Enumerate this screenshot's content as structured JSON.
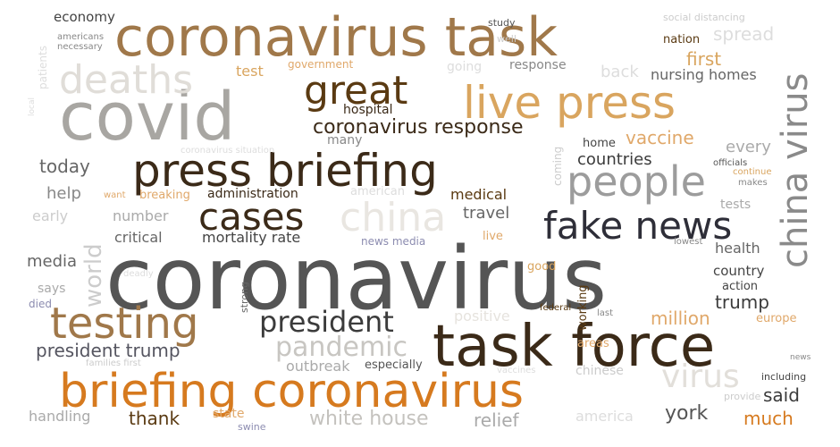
{
  "palette": {
    "background": "#ffffff",
    "dark_gray": "#555555",
    "dark_brown": "#3b2a18",
    "brown": "#5a3a12",
    "tan": "#a0784a",
    "orange": "#d67a1f",
    "light_tan": "#d9a55f",
    "gray": "#9c9c9c",
    "light_gray": "#cccccc",
    "pale": "#e6e3de",
    "slate": "#2e2e38",
    "lavender": "#8c8cb0"
  },
  "words": [
    {
      "text": "coronavirus",
      "color": "#555555"
    },
    {
      "text": "coronavirus task",
      "color": "#a0784a"
    },
    {
      "text": "covid",
      "color": "#a8a6a2"
    },
    {
      "text": "press briefing",
      "color": "#3b2a18"
    },
    {
      "text": "task force",
      "color": "#3b2a18"
    },
    {
      "text": "briefing coronavirus",
      "color": "#d67a1f"
    },
    {
      "text": "live press",
      "color": "#d9a55f"
    },
    {
      "text": "deaths",
      "color": "#e0ddd8"
    },
    {
      "text": "great",
      "color": "#5a3a12"
    },
    {
      "text": "people",
      "color": "#9c9c9c"
    },
    {
      "text": "china virus",
      "color": "#8a8a8a"
    },
    {
      "text": "testing",
      "color": "#a0784a"
    },
    {
      "text": "fake news",
      "color": "#2e2e38"
    },
    {
      "text": "cases",
      "color": "#3b2a18"
    },
    {
      "text": "china",
      "color": "#e9e6e1"
    },
    {
      "text": "president",
      "color": "#3b3b3b"
    },
    {
      "text": "pandemic",
      "color": "#c8c6c2"
    },
    {
      "text": "coronavirus response",
      "color": "#3b2a18"
    },
    {
      "text": "virus",
      "color": "#e2dfda"
    },
    {
      "text": "world",
      "color": "#cccccc"
    },
    {
      "text": "president trump",
      "color": "#555560"
    },
    {
      "text": "white house",
      "color": "#c4c2be"
    },
    {
      "text": "vaccine",
      "color": "#e0a86a"
    },
    {
      "text": "first",
      "color": "#d9a55f"
    },
    {
      "text": "nursing homes",
      "color": "#666666"
    },
    {
      "text": "today",
      "color": "#666666"
    },
    {
      "text": "countries",
      "color": "#3b3b3b"
    },
    {
      "text": "million",
      "color": "#e0a86a"
    },
    {
      "text": "trump",
      "color": "#3b3b3b"
    },
    {
      "text": "york",
      "color": "#555555"
    },
    {
      "text": "much",
      "color": "#d67a1f"
    },
    {
      "text": "said",
      "color": "#3b3b3b"
    },
    {
      "text": "relief",
      "color": "#aaaaaa"
    },
    {
      "text": "thank",
      "color": "#5a3a12"
    },
    {
      "text": "handling",
      "color": "#aaaaaa"
    },
    {
      "text": "media",
      "color": "#666666"
    },
    {
      "text": "travel",
      "color": "#666666"
    },
    {
      "text": "medical",
      "color": "#5a3a12"
    },
    {
      "text": "hospital",
      "color": "#3b2a18"
    },
    {
      "text": "many",
      "color": "#888888"
    },
    {
      "text": "response",
      "color": "#888888"
    },
    {
      "text": "government",
      "color": "#e0a86a"
    },
    {
      "text": "test",
      "color": "#d9a55f"
    },
    {
      "text": "economy",
      "color": "#444444"
    },
    {
      "text": "americans necessary",
      "color": "#888888"
    },
    {
      "text": "patients",
      "color": "#dddddd"
    },
    {
      "text": "going",
      "color": "#dddddd"
    },
    {
      "text": "back",
      "color": "#dddddd"
    },
    {
      "text": "spread",
      "color": "#dddddd"
    },
    {
      "text": "nation",
      "color": "#5a3a12"
    },
    {
      "text": "social distancing",
      "color": "#cccccc"
    },
    {
      "text": "study",
      "color": "#555555"
    },
    {
      "text": "well",
      "color": "#cccccc"
    },
    {
      "text": "every",
      "color": "#aaaaaa"
    },
    {
      "text": "home",
      "color": "#444444"
    },
    {
      "text": "coming",
      "color": "#cccccc"
    },
    {
      "text": "officials",
      "color": "#555555"
    },
    {
      "text": "continue",
      "color": "#d9a55f"
    },
    {
      "text": "makes",
      "color": "#888888"
    },
    {
      "text": "tests",
      "color": "#aaaaaa"
    },
    {
      "text": "health",
      "color": "#666666"
    },
    {
      "text": "lowest",
      "color": "#888888"
    },
    {
      "text": "country",
      "color": "#444444"
    },
    {
      "text": "action",
      "color": "#444444"
    },
    {
      "text": "europe",
      "color": "#e0a86a"
    },
    {
      "text": "last",
      "color": "#888888"
    },
    {
      "text": "working",
      "color": "#5a3a12"
    },
    {
      "text": "federal",
      "color": "#5a3a12"
    },
    {
      "text": "positive",
      "color": "#e6e3de"
    },
    {
      "text": "areas",
      "color": "#e0a86a"
    },
    {
      "text": "especially",
      "color": "#555555"
    },
    {
      "text": "outbreak",
      "color": "#aaaaaa"
    },
    {
      "text": "vaccines",
      "color": "#dddddd"
    },
    {
      "text": "chinese",
      "color": "#cccccc"
    },
    {
      "text": "including",
      "color": "#444444"
    },
    {
      "text": "news",
      "color": "#888888"
    },
    {
      "text": "provide",
      "color": "#cccccc"
    },
    {
      "text": "america",
      "color": "#dddddd"
    },
    {
      "text": "state",
      "color": "#e0a86a"
    },
    {
      "text": "swine",
      "color": "#8c8cb0"
    },
    {
      "text": "families first",
      "color": "#cccccc"
    },
    {
      "text": "died",
      "color": "#8c8cb0"
    },
    {
      "text": "says",
      "color": "#aaaaaa"
    },
    {
      "text": "deadly",
      "color": "#dddddd"
    },
    {
      "text": "strong",
      "color": "#666666"
    },
    {
      "text": "good",
      "color": "#d9a55f"
    },
    {
      "text": "live",
      "color": "#e0a86a"
    },
    {
      "text": "news media",
      "color": "#8c8cb0"
    },
    {
      "text": "critical",
      "color": "#666666"
    },
    {
      "text": "mortality rate",
      "color": "#444444"
    },
    {
      "text": "number",
      "color": "#aaaaaa"
    },
    {
      "text": "early",
      "color": "#cccccc"
    },
    {
      "text": "help",
      "color": "#888888"
    },
    {
      "text": "administration",
      "color": "#3b2a18"
    },
    {
      "text": "breaking",
      "color": "#e0a86a"
    },
    {
      "text": "american",
      "color": "#dddddd"
    },
    {
      "text": "want",
      "color": "#e0a86a"
    },
    {
      "text": "coronavirus situation",
      "color": "#dddddd"
    },
    {
      "text": "local",
      "color": "#dddddd"
    }
  ]
}
